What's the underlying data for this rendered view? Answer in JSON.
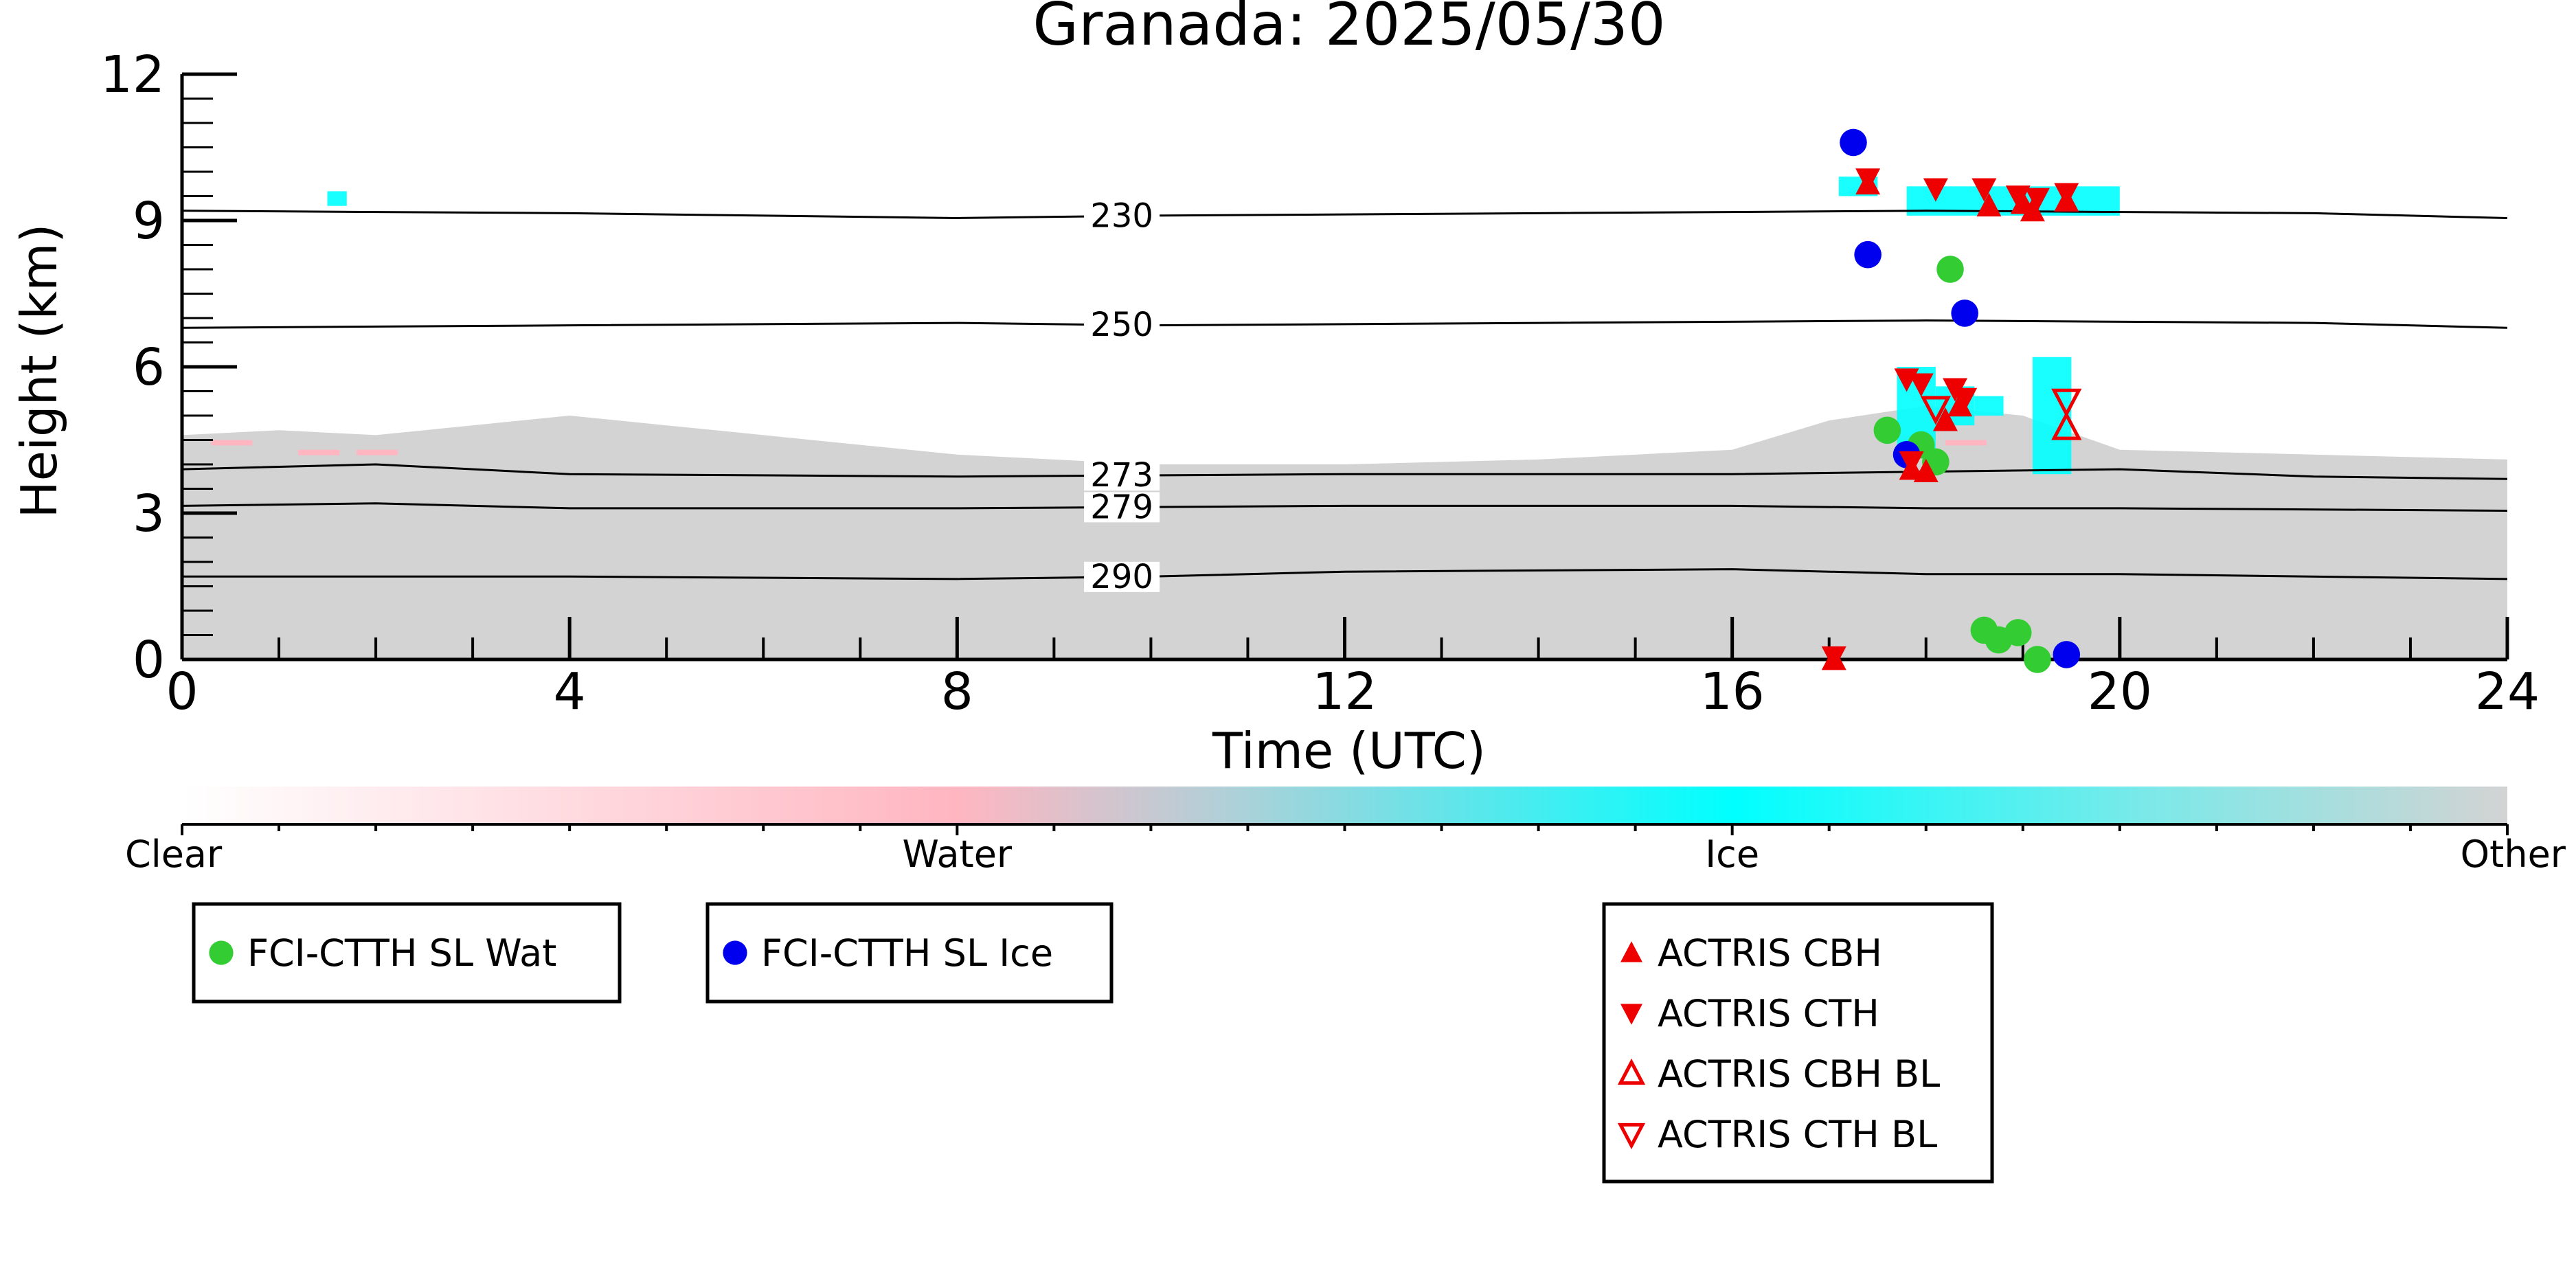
{
  "chart_data": {
    "type": "scatter",
    "title": "Granada: 2025/05/30",
    "xlabel": "Time (UTC)",
    "ylabel": "Height (km)",
    "xlim": [
      0,
      24
    ],
    "ylim": [
      0,
      12
    ],
    "xticks": [
      0,
      4,
      8,
      12,
      16,
      20,
      24
    ],
    "yticks": [
      0,
      3,
      6,
      9,
      12
    ],
    "x_tick_labels": [
      "0",
      "4",
      "8",
      "12",
      "16",
      "20",
      "24"
    ],
    "y_tick_labels": [
      "0",
      "3",
      "6",
      "9",
      "12"
    ],
    "background_field": "cloud phase classification (Clear / Water / Ice / Other); mostly Other below ~4.5 km, Ice patches near 17-20 UTC",
    "contours": [
      {
        "label": "230",
        "points": [
          [
            0,
            9.2
          ],
          [
            4,
            9.15
          ],
          [
            8,
            9.05
          ],
          [
            10,
            9.1
          ],
          [
            14,
            9.15
          ],
          [
            18,
            9.2
          ],
          [
            22,
            9.15
          ],
          [
            24,
            9.05
          ]
        ]
      },
      {
        "label": "250",
        "points": [
          [
            0,
            6.8
          ],
          [
            4,
            6.85
          ],
          [
            8,
            6.9
          ],
          [
            10,
            6.85
          ],
          [
            14,
            6.9
          ],
          [
            18,
            6.95
          ],
          [
            22,
            6.9
          ],
          [
            24,
            6.8
          ]
        ]
      },
      {
        "label": "273",
        "points": [
          [
            0,
            3.9
          ],
          [
            2,
            4.0
          ],
          [
            4,
            3.8
          ],
          [
            8,
            3.75
          ],
          [
            12,
            3.8
          ],
          [
            16,
            3.8
          ],
          [
            18,
            3.85
          ],
          [
            20,
            3.9
          ],
          [
            22,
            3.75
          ],
          [
            24,
            3.7
          ]
        ]
      },
      {
        "label": "279",
        "points": [
          [
            0,
            3.15
          ],
          [
            2,
            3.2
          ],
          [
            4,
            3.1
          ],
          [
            8,
            3.1
          ],
          [
            12,
            3.15
          ],
          [
            16,
            3.15
          ],
          [
            18,
            3.1
          ],
          [
            20,
            3.1
          ],
          [
            24,
            3.05
          ]
        ]
      },
      {
        "label": "290",
        "points": [
          [
            0,
            1.7
          ],
          [
            4,
            1.7
          ],
          [
            8,
            1.65
          ],
          [
            10,
            1.7
          ],
          [
            12,
            1.8
          ],
          [
            16,
            1.85
          ],
          [
            18,
            1.75
          ],
          [
            20,
            1.75
          ],
          [
            24,
            1.65
          ]
        ]
      }
    ],
    "series": [
      {
        "name": "FCI-CTTH SL Wat",
        "marker": "circle",
        "color": "#33cc33",
        "points": [
          [
            18.25,
            8.0
          ],
          [
            17.6,
            4.7
          ],
          [
            17.95,
            4.4
          ],
          [
            18.1,
            4.05
          ],
          [
            18.6,
            0.6
          ],
          [
            18.75,
            0.4
          ],
          [
            18.95,
            0.55
          ],
          [
            19.15,
            0.0
          ]
        ]
      },
      {
        "name": "FCI-CTTH SL Ice",
        "marker": "circle",
        "color": "#0000ee",
        "points": [
          [
            17.25,
            10.6
          ],
          [
            17.4,
            8.3
          ],
          [
            18.4,
            7.1
          ],
          [
            17.8,
            4.2
          ],
          [
            19.45,
            0.1
          ]
        ]
      },
      {
        "name": "ACTRIS CBH",
        "marker": "triangle-up",
        "color": "#ee0000",
        "points": [
          [
            17.4,
            9.75
          ],
          [
            18.65,
            9.3
          ],
          [
            19.0,
            9.35
          ],
          [
            19.1,
            9.2
          ],
          [
            19.45,
            9.4
          ],
          [
            18.2,
            4.9
          ],
          [
            18.35,
            5.2
          ],
          [
            17.85,
            3.9
          ],
          [
            18.0,
            3.85
          ],
          [
            17.05,
            0.0
          ]
        ]
      },
      {
        "name": "ACTRIS CTH",
        "marker": "triangle-down",
        "color": "#ee0000",
        "points": [
          [
            17.4,
            9.85
          ],
          [
            18.1,
            9.65
          ],
          [
            18.6,
            9.65
          ],
          [
            18.95,
            9.5
          ],
          [
            19.15,
            9.45
          ],
          [
            19.45,
            9.55
          ],
          [
            17.8,
            5.75
          ],
          [
            17.95,
            5.65
          ],
          [
            18.3,
            5.55
          ],
          [
            18.4,
            5.35
          ],
          [
            17.85,
            4.05
          ],
          [
            17.05,
            0.05
          ]
        ]
      },
      {
        "name": "ACTRIS CBH BL",
        "marker": "triangle-up-open",
        "color": "#ee0000",
        "points": [
          [
            19.45,
            4.75
          ]
        ]
      },
      {
        "name": "ACTRIS CTH BL",
        "marker": "triangle-down-open",
        "color": "#ee0000",
        "points": [
          [
            18.1,
            5.15
          ],
          [
            19.45,
            5.3
          ]
        ]
      }
    ],
    "colorbar": {
      "labels": [
        "Clear",
        "Water",
        "Ice",
        "Other"
      ],
      "colors": [
        "#ffffff",
        "#ffb6c1",
        "#00ffff",
        "#d3d3d3"
      ]
    },
    "legends": [
      [
        "FCI-CTTH SL Wat"
      ],
      [
        "FCI-CTTH SL Ice"
      ],
      [
        "ACTRIS CBH",
        "ACTRIS CTH",
        "ACTRIS CBH BL",
        "ACTRIS CTH BL"
      ]
    ],
    "colors": {
      "other": "#d3d3d3",
      "ice": "#00ffff",
      "water": "#ffb6c1",
      "contour": "#000000"
    }
  }
}
